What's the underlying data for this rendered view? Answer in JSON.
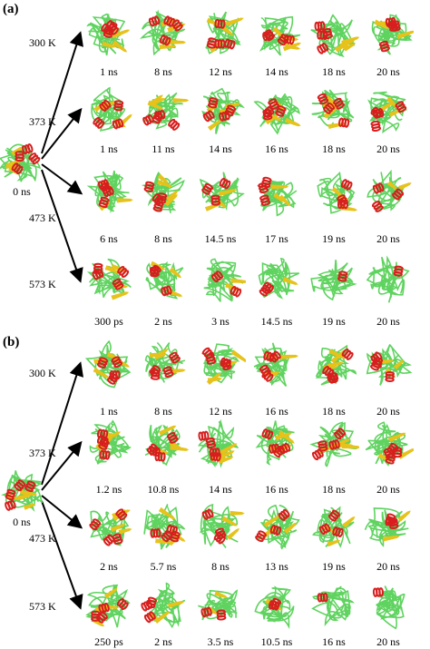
{
  "panels": [
    {
      "label": "(a)",
      "origin_time": "0 ns",
      "rows": [
        {
          "temperature": "300 K",
          "times": [
            "1 ns",
            "8 ns",
            "12 ns",
            "14 ns",
            "18 ns",
            "20 ns"
          ]
        },
        {
          "temperature": "373 K",
          "times": [
            "1 ns",
            "11 ns",
            "14 ns",
            "16 ns",
            "18 ns",
            "20 ns"
          ]
        },
        {
          "temperature": "473 K",
          "times": [
            "6 ns",
            "8 ns",
            "14.5 ns",
            "17 ns",
            "19 ns",
            "20 ns"
          ]
        },
        {
          "temperature": "573 K",
          "times": [
            "300 ps",
            "2 ns",
            "3 ns",
            "14.5 ns",
            "19 ns",
            "20 ns"
          ]
        }
      ]
    },
    {
      "label": "(b)",
      "origin_time": "0 ns",
      "rows": [
        {
          "temperature": "300 K",
          "times": [
            "1 ns",
            "8 ns",
            "12 ns",
            "16 ns",
            "18 ns",
            "20 ns"
          ]
        },
        {
          "temperature": "373 K",
          "times": [
            "1.2 ns",
            "10.8 ns",
            "14 ns",
            "16 ns",
            "18 ns",
            "20 ns"
          ]
        },
        {
          "temperature": "473 K",
          "times": [
            "2 ns",
            "5.7 ns",
            "8 ns",
            "13 ns",
            "19 ns",
            "20 ns"
          ]
        },
        {
          "temperature": "573 K",
          "times": [
            "250 ps",
            "2 ns",
            "3.5 ns",
            "10.5 ns",
            "16 ns",
            "20 ns"
          ]
        }
      ]
    }
  ],
  "colors": {
    "coil": "#5fd35f",
    "helix": "#d81e1e",
    "sheet": "#e6c21a",
    "arrow": "#000000"
  }
}
